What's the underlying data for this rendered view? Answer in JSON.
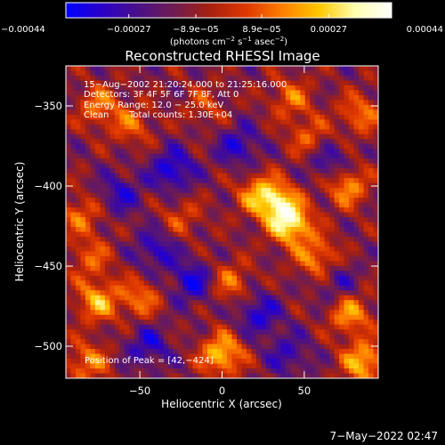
{
  "chart_data": {
    "type": "heatmap",
    "title": "Reconstructed RHESSI Image",
    "xlabel": "Heliocentric X (arcsec)",
    "ylabel": "Heliocentric Y (arcsec)",
    "xlim": [
      -95,
      95
    ],
    "ylim": [
      -520,
      -325
    ],
    "x_ticks": [
      -50,
      0,
      50
    ],
    "y_ticks": [
      -350,
      -400,
      -450,
      -500
    ],
    "x_tick_labels": [
      "−50",
      "0",
      "50"
    ],
    "y_tick_labels": [
      "−350",
      "−400",
      "−450",
      "−500"
    ],
    "colorbar": {
      "min": -0.00044,
      "max": 0.00044,
      "tick_values": [
        -0.00044,
        -0.00027,
        -8.9e-05,
        8.9e-05,
        0.00027,
        0.00044
      ],
      "tick_labels": [
        "−0.00044",
        "−0.00027",
        "−8.9e−05",
        "8.9e−05",
        "0.00027",
        "0.00044"
      ],
      "units_main": "(photons cm",
      "units_sup1": "−2",
      "units_mid1": " s",
      "units_sup2": "−1",
      "units_mid2": " asec",
      "units_sup3": "−2",
      "units_end": ")",
      "stops": [
        "#0000ff",
        "#2a00c8",
        "#4a1088",
        "#701c50",
        "#a82010",
        "#e03800",
        "#ff8000",
        "#ffc800",
        "#ffffb0",
        "#ffffff"
      ]
    },
    "peak": [
      42,
      -424
    ],
    "hotspots": [
      {
        "x": 42,
        "y": -424,
        "intensity": 0.00044
      },
      {
        "x": 33,
        "y": -410,
        "intensity": 0.00036
      },
      {
        "x": 76,
        "y": -400,
        "intensity": 0.0003
      },
      {
        "x": 58,
        "y": -445,
        "intensity": 0.00028
      },
      {
        "x": 21,
        "y": -405,
        "intensity": 0.00024
      },
      {
        "x": 0,
        "y": -505,
        "intensity": 0.00038
      },
      {
        "x": 86,
        "y": -510,
        "intensity": 0.00036
      },
      {
        "x": 78,
        "y": -480,
        "intensity": 0.0003
      },
      {
        "x": 84,
        "y": -355,
        "intensity": 0.00024
      },
      {
        "x": 42,
        "y": -345,
        "intensity": 0.00022
      },
      {
        "x": 53,
        "y": -370,
        "intensity": 0.0002
      },
      {
        "x": -75,
        "y": -350,
        "intensity": 0.00024
      },
      {
        "x": -55,
        "y": -362,
        "intensity": 0.0002
      },
      {
        "x": -76,
        "y": -472,
        "intensity": 0.00032
      },
      {
        "x": -50,
        "y": -470,
        "intensity": 0.00024
      },
      {
        "x": -82,
        "y": -510,
        "intensity": 0.00026
      },
      {
        "x": -86,
        "y": -418,
        "intensity": 0.00022
      },
      {
        "x": -80,
        "y": -445,
        "intensity": 0.0002
      },
      {
        "x": 5,
        "y": -460,
        "intensity": 0.00022
      },
      {
        "x": -25,
        "y": -420,
        "intensity": 0.00016
      },
      {
        "x": -10,
        "y": -350,
        "intensity": 0.00014
      }
    ],
    "coldspots": [
      {
        "x": -30,
        "y": -390,
        "intensity": -0.00028
      },
      {
        "x": -18,
        "y": -460,
        "intensity": -0.00026
      },
      {
        "x": -40,
        "y": -440,
        "intensity": -0.00022
      },
      {
        "x": 10,
        "y": -375,
        "intensity": -0.00022
      },
      {
        "x": 22,
        "y": -480,
        "intensity": -0.00024
      },
      {
        "x": 65,
        "y": -385,
        "intensity": -0.0002
      },
      {
        "x": -62,
        "y": -405,
        "intensity": -0.0002
      },
      {
        "x": 40,
        "y": -505,
        "intensity": -0.00018
      },
      {
        "x": -45,
        "y": -500,
        "intensity": -0.00022
      },
      {
        "x": 70,
        "y": -460,
        "intensity": -0.00016
      }
    ]
  },
  "info": {
    "time_range": "15−Aug−2002 21:20:24.000 to 21:25:16.000",
    "detectors": "Detectors: 3F 4F 5F 6F 7F 8F, Att 0",
    "energy": "Energy Range: 12.0 − 25.0 keV",
    "method": "Clean",
    "counts": "Total counts: 1.30E+04",
    "peak_label": "Position of Peak = [42,−424]"
  },
  "timestamp": "7−May−2022 02:47"
}
